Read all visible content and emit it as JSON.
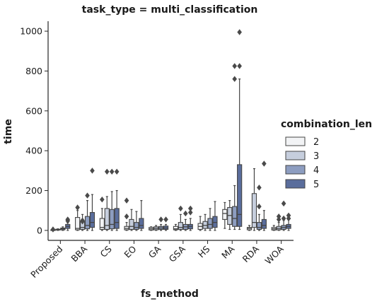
{
  "chart_data": {
    "type": "boxplot",
    "title": "task_type = multi_classification",
    "xlabel": "fs_method",
    "ylabel": "time",
    "ylim": [
      -50,
      1050
    ],
    "yticks": [
      0,
      200,
      400,
      600,
      800,
      1000
    ],
    "categories": [
      "Proposed",
      "BBA",
      "CS",
      "EO",
      "GA",
      "GSA",
      "HS",
      "MA",
      "RDA",
      "WOA"
    ],
    "legend": {
      "title": "combination_len",
      "placement": "right",
      "entries": [
        "2",
        "3",
        "4",
        "5"
      ]
    },
    "colors": [
      "#f2f3f5",
      "#c6cedd",
      "#8d9dc0",
      "#5a6d9c"
    ],
    "series": [
      {
        "name": "2",
        "boxes": [
          {
            "q1": 1,
            "median": 2,
            "q3": 3,
            "low": 0,
            "high": 4,
            "outliers": [
              5
            ]
          },
          {
            "q1": 3,
            "median": 10,
            "q3": 65,
            "low": 0,
            "high": 100,
            "outliers": [
              115
            ]
          },
          {
            "q1": 5,
            "median": 15,
            "q3": 60,
            "low": 0,
            "high": 110,
            "outliers": [
              155
            ]
          },
          {
            "q1": 3,
            "median": 10,
            "q3": 20,
            "low": 0,
            "high": 40,
            "outliers": [
              70,
              150
            ]
          },
          {
            "q1": 2,
            "median": 8,
            "q3": 15,
            "low": 0,
            "high": 18,
            "outliers": []
          },
          {
            "q1": 3,
            "median": 8,
            "q3": 20,
            "low": 0,
            "high": 30,
            "outliers": []
          },
          {
            "q1": 5,
            "median": 20,
            "q3": 35,
            "low": 0,
            "high": 70,
            "outliers": []
          },
          {
            "q1": 55,
            "median": 85,
            "q3": 105,
            "low": 10,
            "high": 140,
            "outliers": []
          },
          {
            "q1": 3,
            "median": 10,
            "q3": 15,
            "low": 0,
            "high": 25,
            "outliers": []
          },
          {
            "q1": 2,
            "median": 8,
            "q3": 15,
            "low": 0,
            "high": 25,
            "outliers": []
          }
        ]
      },
      {
        "name": "3",
        "boxes": [
          {
            "q1": 2,
            "median": 4,
            "q3": 6,
            "low": 0,
            "high": 8,
            "outliers": []
          },
          {
            "q1": 5,
            "median": 15,
            "q3": 45,
            "low": 0,
            "high": 80,
            "outliers": [
              45,
              50
            ]
          },
          {
            "q1": 5,
            "median": 25,
            "q3": 110,
            "low": 0,
            "high": 170,
            "outliers": [
              295
            ]
          },
          {
            "q1": 5,
            "median": 20,
            "q3": 55,
            "low": 0,
            "high": 105,
            "outliers": []
          },
          {
            "q1": 3,
            "median": 10,
            "q3": 18,
            "low": 0,
            "high": 25,
            "outliers": []
          },
          {
            "q1": 5,
            "median": 15,
            "q3": 40,
            "low": 0,
            "high": 80,
            "outliers": [
              110
            ]
          },
          {
            "q1": 10,
            "median": 25,
            "q3": 45,
            "low": 0,
            "high": 80,
            "outliers": []
          },
          {
            "q1": 30,
            "median": 75,
            "q3": 115,
            "low": 5,
            "high": 150,
            "outliers": []
          },
          {
            "q1": 15,
            "median": 40,
            "q3": 185,
            "low": 0,
            "high": 310,
            "outliers": []
          },
          {
            "q1": 3,
            "median": 10,
            "q3": 20,
            "low": 0,
            "high": 40,
            "outliers": [
              55,
              70
            ]
          }
        ]
      },
      {
        "name": "4",
        "boxes": [
          {
            "q1": 3,
            "median": 8,
            "q3": 12,
            "low": 0,
            "high": 18,
            "outliers": []
          },
          {
            "q1": 8,
            "median": 25,
            "q3": 70,
            "low": 0,
            "high": 150,
            "outliers": [
              175
            ]
          },
          {
            "q1": 8,
            "median": 30,
            "q3": 105,
            "low": 0,
            "high": 195,
            "outliers": [
              295
            ]
          },
          {
            "q1": 5,
            "median": 15,
            "q3": 40,
            "low": 0,
            "high": 95,
            "outliers": []
          },
          {
            "q1": 5,
            "median": 12,
            "q3": 20,
            "low": 0,
            "high": 30,
            "outliers": [
              55
            ]
          },
          {
            "q1": 5,
            "median": 18,
            "q3": 30,
            "low": 0,
            "high": 55,
            "outliers": [
              85
            ]
          },
          {
            "q1": 10,
            "median": 30,
            "q3": 60,
            "low": 0,
            "high": 110,
            "outliers": []
          },
          {
            "q1": 20,
            "median": 60,
            "q3": 120,
            "low": 5,
            "high": 225,
            "outliers": [
              760,
              825
            ]
          },
          {
            "q1": 5,
            "median": 15,
            "q3": 40,
            "low": 0,
            "high": 80,
            "outliers": [
              120,
              215
            ]
          },
          {
            "q1": 5,
            "median": 15,
            "q3": 25,
            "low": 0,
            "high": 50,
            "outliers": [
              60,
              135
            ]
          }
        ]
      },
      {
        "name": "5",
        "boxes": [
          {
            "q1": 10,
            "median": 20,
            "q3": 30,
            "low": 0,
            "high": 38,
            "outliers": [
              48,
              55
            ]
          },
          {
            "q1": 15,
            "median": 40,
            "q3": 90,
            "low": 0,
            "high": 180,
            "outliers": [
              300
            ]
          },
          {
            "q1": 10,
            "median": 40,
            "q3": 110,
            "low": 0,
            "high": 200,
            "outliers": [
              295
            ]
          },
          {
            "q1": 10,
            "median": 25,
            "q3": 60,
            "low": 0,
            "high": 150,
            "outliers": []
          },
          {
            "q1": 5,
            "median": 12,
            "q3": 22,
            "low": 0,
            "high": 30,
            "outliers": [
              55
            ]
          },
          {
            "q1": 8,
            "median": 20,
            "q3": 30,
            "low": 0,
            "high": 60,
            "outliers": [
              90,
              110
            ]
          },
          {
            "q1": 15,
            "median": 40,
            "q3": 70,
            "low": 0,
            "high": 145,
            "outliers": []
          },
          {
            "q1": 20,
            "median": 80,
            "q3": 330,
            "low": 5,
            "high": 760,
            "outliers": [
              825,
              995
            ]
          },
          {
            "q1": 10,
            "median": 25,
            "q3": 55,
            "low": 0,
            "high": 100,
            "outliers": [
              335
            ]
          },
          {
            "q1": 10,
            "median": 20,
            "q3": 30,
            "low": 0,
            "high": 80,
            "outliers": [
              60,
              75
            ]
          }
        ]
      }
    ]
  }
}
